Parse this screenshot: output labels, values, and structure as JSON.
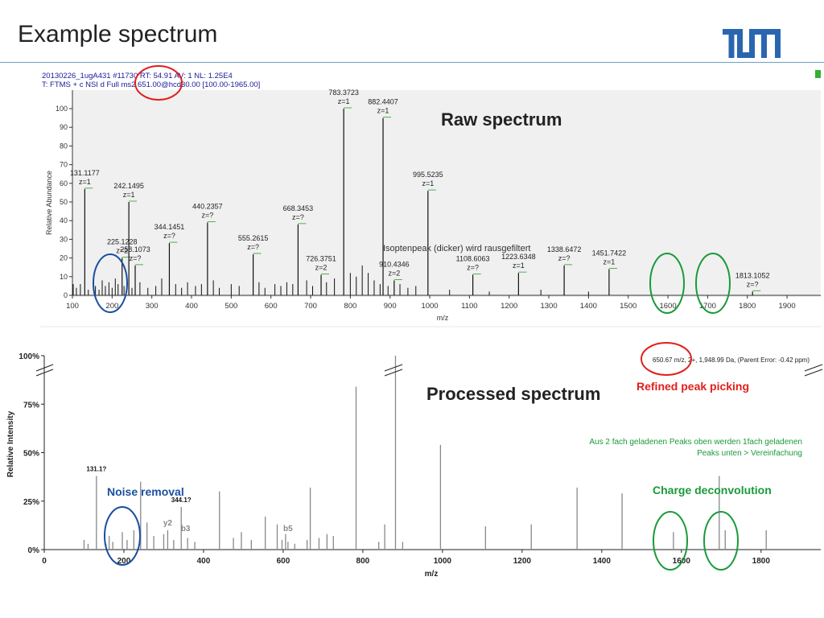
{
  "slide": {
    "title": "Example spectrum",
    "logo_text": "TUM"
  },
  "raw_header": {
    "line1": "20130226_1ugA431 #11730  RT: 54.91  AV: 1  NL: 1.25E4",
    "line2": "T: FTMS + c NSI d Full ms2 651.00@hcd30.00 [100.00-1965.00]"
  },
  "annotations": {
    "raw_spectrum": "Raw spectrum",
    "processed_spectrum": "Processed spectrum",
    "refined_peak_picking": "Refined peak picking",
    "noise_removal": "Noise removal",
    "charge_deconvolution": "Charge deconvolution",
    "charge_note_line1": "Aus 2 fach geladenen Peaks oben werden 1fach geladenen",
    "charge_note_line2": "Peaks unten > Vereinfachung",
    "isotope_note": "Isoptenpeak (dicker) wird rausgefiltert",
    "precursor_info": "650.67 m/z, 2+, 1,948.99 Da,  (Parent Error: -0.42 ppm)"
  },
  "colors": {
    "red": "#e0201c",
    "blue": "#1a4fa0",
    "green": "#1a9a3a",
    "header_blue": "#1a1a9a"
  },
  "chart_data": [
    {
      "type": "bar",
      "title": "Raw spectrum",
      "xlabel": "m/z",
      "ylabel": "Relative Abundance",
      "xlim": [
        100,
        1985
      ],
      "ylim": [
        0,
        100
      ],
      "xticks": [
        100,
        200,
        300,
        400,
        500,
        600,
        700,
        800,
        900,
        1000,
        1100,
        1200,
        1300,
        1400,
        1500,
        1600,
        1700,
        1800,
        1900
      ],
      "yticks": [
        0,
        10,
        20,
        30,
        40,
        50,
        60,
        70,
        80,
        90,
        100
      ],
      "labeled_peaks": [
        {
          "mz": 131.1177,
          "y": 57,
          "label": "131.1177",
          "z": "z=1"
        },
        {
          "mz": 225.1228,
          "y": 20,
          "label": "225.1228",
          "z": "z=2"
        },
        {
          "mz": 242.1495,
          "y": 50,
          "label": "242.1495",
          "z": "z=1"
        },
        {
          "mz": 258.1073,
          "y": 16,
          "label": "258.1073",
          "z": "z=?"
        },
        {
          "mz": 344.1451,
          "y": 28,
          "label": "344.1451",
          "z": "z=?"
        },
        {
          "mz": 440.2357,
          "y": 39,
          "label": "440.2357",
          "z": "z=?"
        },
        {
          "mz": 555.2615,
          "y": 22,
          "label": "555.2615",
          "z": "z=?"
        },
        {
          "mz": 668.3453,
          "y": 38,
          "label": "668.3453",
          "z": "z=?"
        },
        {
          "mz": 726.3751,
          "y": 11,
          "label": "726.3751",
          "z": "z=2"
        },
        {
          "mz": 783.3723,
          "y": 100,
          "label": "783.3723",
          "z": "z=1"
        },
        {
          "mz": 882.4407,
          "y": 95,
          "label": "882.4407",
          "z": "z=1"
        },
        {
          "mz": 910.4346,
          "y": 8,
          "label": "910.4346",
          "z": "z=2"
        },
        {
          "mz": 995.5235,
          "y": 56,
          "label": "995.5235",
          "z": "z=1"
        },
        {
          "mz": 1108.6063,
          "y": 11,
          "label": "1108.6063",
          "z": "z=?"
        },
        {
          "mz": 1223.6348,
          "y": 12,
          "label": "1223.6348",
          "z": "z=1"
        },
        {
          "mz": 1338.6472,
          "y": 16,
          "label": "1338.6472",
          "z": "z=?"
        },
        {
          "mz": 1451.7422,
          "y": 14,
          "label": "1451.7422",
          "z": "z=1"
        },
        {
          "mz": 1813.1052,
          "y": 2,
          "label": "1813.1052",
          "z": "z=?"
        }
      ],
      "noise_peaks": [
        {
          "mz": 102,
          "y": 6
        },
        {
          "mz": 110,
          "y": 4
        },
        {
          "mz": 120,
          "y": 6
        },
        {
          "mz": 140,
          "y": 3
        },
        {
          "mz": 158,
          "y": 5
        },
        {
          "mz": 167,
          "y": 3
        },
        {
          "mz": 175,
          "y": 8
        },
        {
          "mz": 183,
          "y": 5
        },
        {
          "mz": 192,
          "y": 7
        },
        {
          "mz": 200,
          "y": 4
        },
        {
          "mz": 208,
          "y": 9
        },
        {
          "mz": 215,
          "y": 6
        },
        {
          "mz": 230,
          "y": 5
        },
        {
          "mz": 250,
          "y": 4
        },
        {
          "mz": 270,
          "y": 7
        },
        {
          "mz": 290,
          "y": 4
        },
        {
          "mz": 310,
          "y": 5
        },
        {
          "mz": 325,
          "y": 9
        },
        {
          "mz": 360,
          "y": 6
        },
        {
          "mz": 375,
          "y": 4
        },
        {
          "mz": 390,
          "y": 7
        },
        {
          "mz": 410,
          "y": 5
        },
        {
          "mz": 425,
          "y": 6
        },
        {
          "mz": 455,
          "y": 8
        },
        {
          "mz": 470,
          "y": 4
        },
        {
          "mz": 500,
          "y": 6
        },
        {
          "mz": 520,
          "y": 5
        },
        {
          "mz": 570,
          "y": 7
        },
        {
          "mz": 585,
          "y": 4
        },
        {
          "mz": 610,
          "y": 6
        },
        {
          "mz": 625,
          "y": 5
        },
        {
          "mz": 640,
          "y": 7
        },
        {
          "mz": 655,
          "y": 6
        },
        {
          "mz": 690,
          "y": 8
        },
        {
          "mz": 705,
          "y": 5
        },
        {
          "mz": 740,
          "y": 7
        },
        {
          "mz": 760,
          "y": 9
        },
        {
          "mz": 800,
          "y": 12
        },
        {
          "mz": 815,
          "y": 10
        },
        {
          "mz": 830,
          "y": 16
        },
        {
          "mz": 845,
          "y": 12
        },
        {
          "mz": 860,
          "y": 8
        },
        {
          "mz": 875,
          "y": 6
        },
        {
          "mz": 895,
          "y": 5
        },
        {
          "mz": 925,
          "y": 6
        },
        {
          "mz": 945,
          "y": 4
        },
        {
          "mz": 965,
          "y": 5
        },
        {
          "mz": 1050,
          "y": 3
        },
        {
          "mz": 1150,
          "y": 2
        },
        {
          "mz": 1280,
          "y": 3
        },
        {
          "mz": 1400,
          "y": 2
        }
      ]
    },
    {
      "type": "bar",
      "title": "Processed spectrum",
      "xlabel": "m/z",
      "ylabel": "Relative Intensity",
      "xlim": [
        0,
        1950
      ],
      "ylim": [
        0,
        100
      ],
      "xticks": [
        0,
        200,
        400,
        600,
        800,
        1000,
        1200,
        1400,
        1600,
        1800
      ],
      "yticks": [
        0,
        25,
        50,
        75,
        100
      ],
      "ytick_labels": [
        "0%",
        "25%",
        "50%",
        "75%",
        "100%"
      ],
      "peaks": [
        {
          "mz": 100,
          "y": 5
        },
        {
          "mz": 110,
          "y": 3
        },
        {
          "mz": 131,
          "y": 38
        },
        {
          "mz": 155,
          "y": 3
        },
        {
          "mz": 163,
          "y": 7
        },
        {
          "mz": 172,
          "y": 4
        },
        {
          "mz": 196,
          "y": 9
        },
        {
          "mz": 208,
          "y": 5
        },
        {
          "mz": 225,
          "y": 10
        },
        {
          "mz": 242,
          "y": 35
        },
        {
          "mz": 258,
          "y": 14
        },
        {
          "mz": 275,
          "y": 7
        },
        {
          "mz": 300,
          "y": 8
        },
        {
          "mz": 310,
          "y": 10
        },
        {
          "mz": 325,
          "y": 5
        },
        {
          "mz": 344,
          "y": 22
        },
        {
          "mz": 360,
          "y": 6
        },
        {
          "mz": 378,
          "y": 4
        },
        {
          "mz": 440,
          "y": 30
        },
        {
          "mz": 475,
          "y": 6
        },
        {
          "mz": 495,
          "y": 9
        },
        {
          "mz": 520,
          "y": 5
        },
        {
          "mz": 555,
          "y": 17
        },
        {
          "mz": 585,
          "y": 13
        },
        {
          "mz": 597,
          "y": 5
        },
        {
          "mz": 606,
          "y": 8
        },
        {
          "mz": 612,
          "y": 4
        },
        {
          "mz": 629,
          "y": 3
        },
        {
          "mz": 660,
          "y": 5
        },
        {
          "mz": 668,
          "y": 32
        },
        {
          "mz": 690,
          "y": 6
        },
        {
          "mz": 710,
          "y": 8
        },
        {
          "mz": 726,
          "y": 7
        },
        {
          "mz": 783,
          "y": 84
        },
        {
          "mz": 840,
          "y": 4
        },
        {
          "mz": 855,
          "y": 13
        },
        {
          "mz": 882,
          "y": 100
        },
        {
          "mz": 900,
          "y": 4
        },
        {
          "mz": 995,
          "y": 54
        },
        {
          "mz": 1108,
          "y": 12
        },
        {
          "mz": 1223,
          "y": 13
        },
        {
          "mz": 1338,
          "y": 32
        },
        {
          "mz": 1451,
          "y": 29
        },
        {
          "mz": 1580,
          "y": 9
        },
        {
          "mz": 1695,
          "y": 38
        },
        {
          "mz": 1710,
          "y": 10
        },
        {
          "mz": 1813,
          "y": 10
        }
      ],
      "peak_labels": [
        {
          "mz": 131,
          "y": 38,
          "label": "131.1?"
        },
        {
          "mz": 344,
          "y": 22,
          "label": "344.1?"
        },
        {
          "mz": 310,
          "y": 10,
          "label": "y2"
        },
        {
          "mz": 355,
          "y": 7,
          "label": "b3"
        },
        {
          "mz": 612,
          "y": 7,
          "label": "b5"
        }
      ]
    }
  ]
}
